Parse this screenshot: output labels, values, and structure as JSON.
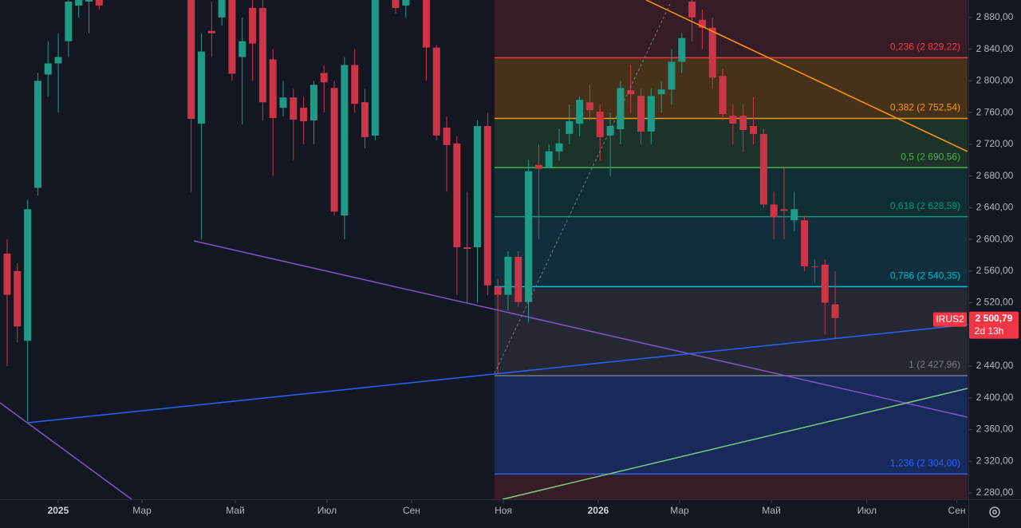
{
  "chart_data": {
    "type": "candlestick",
    "open": [
      2582,
      2560,
      2472,
      2665,
      2808,
      2822,
      2850,
      2895,
      2900,
      2905,
      null,
      null,
      null,
      null,
      null,
      null,
      null,
      null,
      2905,
      2746,
      2863,
      2880,
      2910,
      2830,
      2892,
      2892,
      2827,
      2766,
      2779,
      2766,
      2750,
      2810,
      2791,
      2630,
      2820,
      2773,
      2731,
      null,
      2910,
      2895,
      null,
      2910,
      2842,
      2741,
      2721,
      2590,
      2590,
      2743,
      2540,
      2530,
      2578,
      2521,
      2694,
      2691,
      2711,
      2733,
      2746,
      2773,
      2761,
      2731,
      2739,
      2788,
      2781,
      2736,
      2783,
      2789,
      2824,
      2900,
      2877,
      2867,
      2806,
      2756,
      2756,
      2743,
      2733,
      2644,
      2638,
      2624,
      2624,
      2566,
      2568,
      2518
    ],
    "high": [
      2600,
      2570,
      2650,
      2810,
      2850,
      2860,
      2920,
      2920,
      2915,
      2915,
      null,
      null,
      null,
      null,
      null,
      null,
      null,
      null,
      2915,
      2860,
      2900,
      2915,
      2915,
      2880,
      2910,
      2905,
      2840,
      2800,
      2790,
      2780,
      2800,
      2820,
      2800,
      2830,
      2840,
      2790,
      2915,
      null,
      2915,
      2915,
      null,
      2915,
      2845,
      2755,
      2730,
      2660,
      2750,
      2760,
      2550,
      2585,
      2585,
      2700,
      2720,
      2720,
      2740,
      2770,
      2780,
      2795,
      2770,
      2760,
      2800,
      2820,
      2790,
      2790,
      2800,
      2840,
      2860,
      2902,
      2890,
      2880,
      2815,
      2770,
      2770,
      2780,
      2740,
      2660,
      2690,
      2660,
      2630,
      2575,
      2575,
      2560
    ],
    "low": [
      2440,
      2470,
      2370,
      2655,
      2780,
      2760,
      2830,
      2880,
      2860,
      2890,
      null,
      null,
      null,
      null,
      null,
      null,
      null,
      null,
      2660,
      2600,
      2830,
      2870,
      2800,
      2745,
      2800,
      2750,
      2680,
      2755,
      2700,
      2720,
      2720,
      2760,
      2630,
      2600,
      2760,
      2715,
      2725,
      null,
      2885,
      2880,
      null,
      2800,
      2725,
      2660,
      2530,
      2520,
      2520,
      2530,
      2430,
      2510,
      2515,
      2495,
      2600,
      2690,
      2700,
      2720,
      2730,
      2750,
      2700,
      2680,
      2720,
      2760,
      2720,
      2720,
      2760,
      2770,
      2810,
      2850,
      2840,
      2790,
      2750,
      2720,
      2710,
      2720,
      2640,
      2600,
      2600,
      2610,
      2560,
      2545,
      2480,
      2475
    ],
    "close": [
      2530,
      2490,
      2638,
      2800,
      2822,
      2830,
      2900,
      2910,
      2905,
      2895,
      null,
      null,
      null,
      null,
      null,
      null,
      null,
      null,
      2752,
      2837,
      2860,
      2910,
      2809,
      2850,
      2847,
      2773,
      2753,
      2779,
      2751,
      2749,
      2795,
      2798,
      2635,
      2820,
      2771,
      2729,
      2910,
      null,
      2892,
      2902,
      null,
      2842,
      2731,
      2719,
      2590,
      2588,
      2743,
      2542,
      2530,
      2578,
      2521,
      2686,
      2689,
      2711,
      2721,
      2749,
      2776,
      2763,
      2729,
      2743,
      2791,
      2783,
      2736,
      2781,
      2789,
      2824,
      2854,
      2880,
      2867,
      2804,
      2758,
      2746,
      2738,
      2733,
      2644,
      2628,
      2636,
      2638,
      2566,
      2565,
      2520,
      2500.79
    ],
    "up_color": "#1f9a86",
    "down_color": "#cc3448",
    "xlim": [
      -0.7,
      93.95
    ],
    "xticks": [
      {
        "value": 4.99,
        "label": "2025"
      },
      {
        "value": 13.19,
        "label": "Мар"
      },
      {
        "value": 22.32,
        "label": "Май"
      },
      {
        "value": 31.29,
        "label": "Июл"
      },
      {
        "value": 39.56,
        "label": "Сен"
      },
      {
        "value": 48.54,
        "label": "Ноя"
      },
      {
        "value": 57.82,
        "label": "2026"
      },
      {
        "value": 65.78,
        "label": "Мар"
      },
      {
        "value": 74.76,
        "label": "Май"
      },
      {
        "value": 84.1,
        "label": "Июл"
      },
      {
        "value": 92.9,
        "label": "Сен"
      }
    ],
    "ylim": [
      2272,
      2902
    ],
    "yticks": [
      {
        "value": 2280,
        "label": "2 280,00"
      },
      {
        "value": 2320,
        "label": "2 320,00"
      },
      {
        "value": 2360,
        "label": "2 360,00"
      },
      {
        "value": 2400,
        "label": "2 400,00"
      },
      {
        "value": 2440,
        "label": "2 440,00"
      },
      {
        "value": 2480,
        "label": "2 480,00"
      },
      {
        "value": 2520,
        "label": "2 520,00"
      },
      {
        "value": 2560,
        "label": "2 560,00"
      },
      {
        "value": 2600,
        "label": "2 600,00"
      },
      {
        "value": 2640,
        "label": "2 640,00"
      },
      {
        "value": 2680,
        "label": "2 680,00"
      },
      {
        "value": 2720,
        "label": "2 720,00"
      },
      {
        "value": 2760,
        "label": "2 760,00"
      },
      {
        "value": 2800,
        "label": "2 800,00"
      },
      {
        "value": 2840,
        "label": "2 840,00"
      },
      {
        "value": 2880,
        "label": "2 880,00"
      }
    ],
    "fib_levels": [
      {
        "label": "0,236 (2 829,22)",
        "value": 2829.22,
        "color": "#f23645",
        "fill": "rgba(242,54,69,0.16)"
      },
      {
        "label": "0,382 (2 752,54)",
        "value": 2752.54,
        "color": "#ff9800",
        "fill": "rgba(255,152,0,0.22)"
      },
      {
        "label": "0,5 (2 690,56)",
        "value": 2690.56,
        "color": "#4caf50",
        "fill": "rgba(76,175,80,0.18)"
      },
      {
        "label": "0,618 (2 628,59)",
        "value": 2628.59,
        "color": "#089981",
        "fill": "rgba(8,153,129,0.18)"
      },
      {
        "label": "0,786 (2 540,35)",
        "value": 2540.35,
        "color": "#00bcd4",
        "fill": "rgba(0,188,212,0.14)"
      },
      {
        "label": "1 (2 427,96)",
        "value": 2427.96,
        "color": "#787b86",
        "fill": "rgba(120,123,134,0.18)"
      },
      {
        "label": "1,236 (2 304,00)",
        "value": 2304.0,
        "color": "#2962ff",
        "fill": "rgba(41,98,255,0.25)"
      }
    ],
    "fib_below_color": "rgba(242,54,69,0.16)",
    "symbol": "IRUS2",
    "last_price": {
      "value": 2500.79,
      "label": "2 500,79"
    },
    "countdown": "2d 13h",
    "tag_color": "#f23645"
  }
}
